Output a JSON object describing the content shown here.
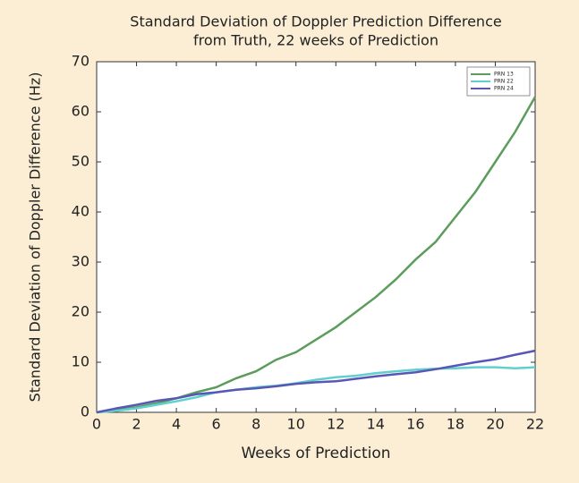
{
  "chart_data": {
    "type": "line",
    "title": [
      "Standard Deviation of Doppler Prediction Difference",
      "from Truth, 22 weeks of Prediction"
    ],
    "x_label": "Weeks of Prediction",
    "y_label": "Standard Deviation of Doppler Difference (Hz)",
    "x": [
      0,
      1,
      2,
      3,
      4,
      5,
      6,
      7,
      8,
      9,
      10,
      11,
      12,
      13,
      14,
      15,
      16,
      17,
      18,
      19,
      20,
      21,
      22
    ],
    "series": [
      {
        "name": "PRN 13",
        "color": "#5c9c5c",
        "values": [
          0,
          0.5,
          1,
          1.8,
          2.8,
          4,
          5,
          6.8,
          8.2,
          10.5,
          12,
          14.5,
          17,
          20,
          23,
          26.5,
          30.5,
          34,
          39,
          44,
          50,
          56,
          63
        ]
      },
      {
        "name": "PRN 22",
        "color": "#62cfcf",
        "values": [
          0,
          0.3,
          0.8,
          1.5,
          2.2,
          3,
          4,
          4.5,
          5,
          5.3,
          5.8,
          6.5,
          7,
          7.3,
          7.8,
          8.2,
          8.5,
          8.7,
          8.8,
          9,
          9,
          8.8,
          9
        ]
      },
      {
        "name": "PRN 24",
        "color": "#5858b4",
        "values": [
          0,
          0.8,
          1.5,
          2.3,
          2.8,
          3.6,
          4,
          4.5,
          4.8,
          5.2,
          5.7,
          6,
          6.2,
          6.7,
          7.2,
          7.6,
          8,
          8.6,
          9.3,
          10,
          10.6,
          11.5,
          12.3
        ]
      }
    ],
    "xlim": [
      0,
      22
    ],
    "xticks": [
      0,
      2,
      4,
      6,
      8,
      10,
      12,
      14,
      16,
      18,
      20,
      22
    ],
    "ylim": [
      0,
      70
    ],
    "yticks": [
      0,
      10,
      20,
      30,
      40,
      50,
      60,
      70
    ],
    "legend": "upper right"
  }
}
